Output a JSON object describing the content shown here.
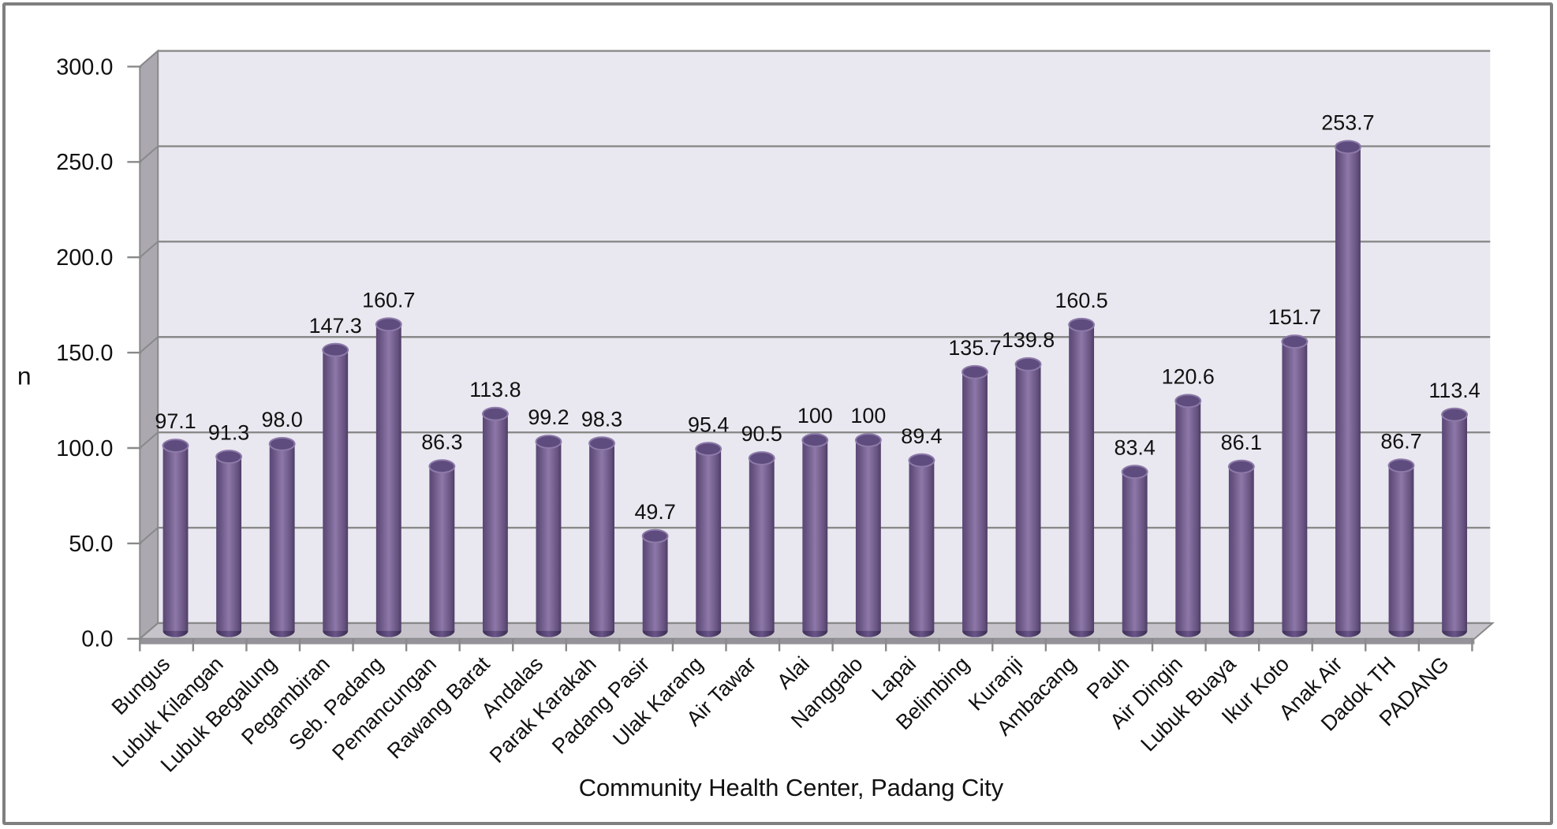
{
  "chart_data": {
    "type": "bar",
    "subtype": "3d-cylinder",
    "title": "",
    "xlabel": "Community Health Center, Padang City",
    "ylabel": "n",
    "ylim": [
      0,
      300
    ],
    "ytick_step": 50,
    "y_ticks": [
      "300.0",
      "250.0",
      "200.0",
      "150.0",
      "100.0",
      "50.0",
      "0.0"
    ],
    "grid": true,
    "legend": "none",
    "categories": [
      "Bungus",
      "Lubuk Kilangan",
      "Lubuk Begalung",
      "Pegambiran",
      "Seb. Padang",
      "Pemancungan",
      "Rawang Barat",
      "Andalas",
      "Parak Karakah",
      "Padang Pasir",
      "Ulak Karang",
      "Air Tawar",
      "Alai",
      "Nanggalo",
      "Lapai",
      "Belimbing",
      "Kuranji",
      "Ambacang",
      "Pauh",
      "Air Dingin",
      "Lubuk Buaya",
      "Ikur Koto",
      "Anak Air",
      "Dadok TH",
      "PADANG"
    ],
    "values": [
      97.1,
      91.3,
      98.0,
      147.3,
      160.7,
      86.3,
      113.8,
      99.2,
      98.3,
      49.7,
      95.4,
      90.5,
      100,
      100,
      89.4,
      135.7,
      139.8,
      160.5,
      83.4,
      120.6,
      86.1,
      151.7,
      253.7,
      86.7,
      113.4
    ],
    "value_labels": [
      "97.1",
      "91.3",
      "98.0",
      "147.3",
      "160.7",
      "86.3",
      "113.8",
      "99.2",
      "98.3",
      "49.7",
      "95.4",
      "90.5",
      "100",
      "100",
      "89.4",
      "135.7",
      "139.8",
      "160.5",
      "83.4",
      "120.6",
      "86.1",
      "151.7",
      "253.7",
      "86.7",
      "113.4"
    ],
    "colors": {
      "bar_mid": "#8d78a9",
      "bar_edge": "#5a4877",
      "bar_top": "#5f4c7e",
      "bar_top_rim": "#8d7aa9",
      "bar_bottom": "#453863",
      "back_wall": "#e9e8f0",
      "side_wall": "#aba8b0",
      "floor_top": "#c6c4ca",
      "floor_face": "#95929a",
      "gridline": "#898989",
      "text": "#111111",
      "frame_border": "#7f7f7f"
    }
  }
}
